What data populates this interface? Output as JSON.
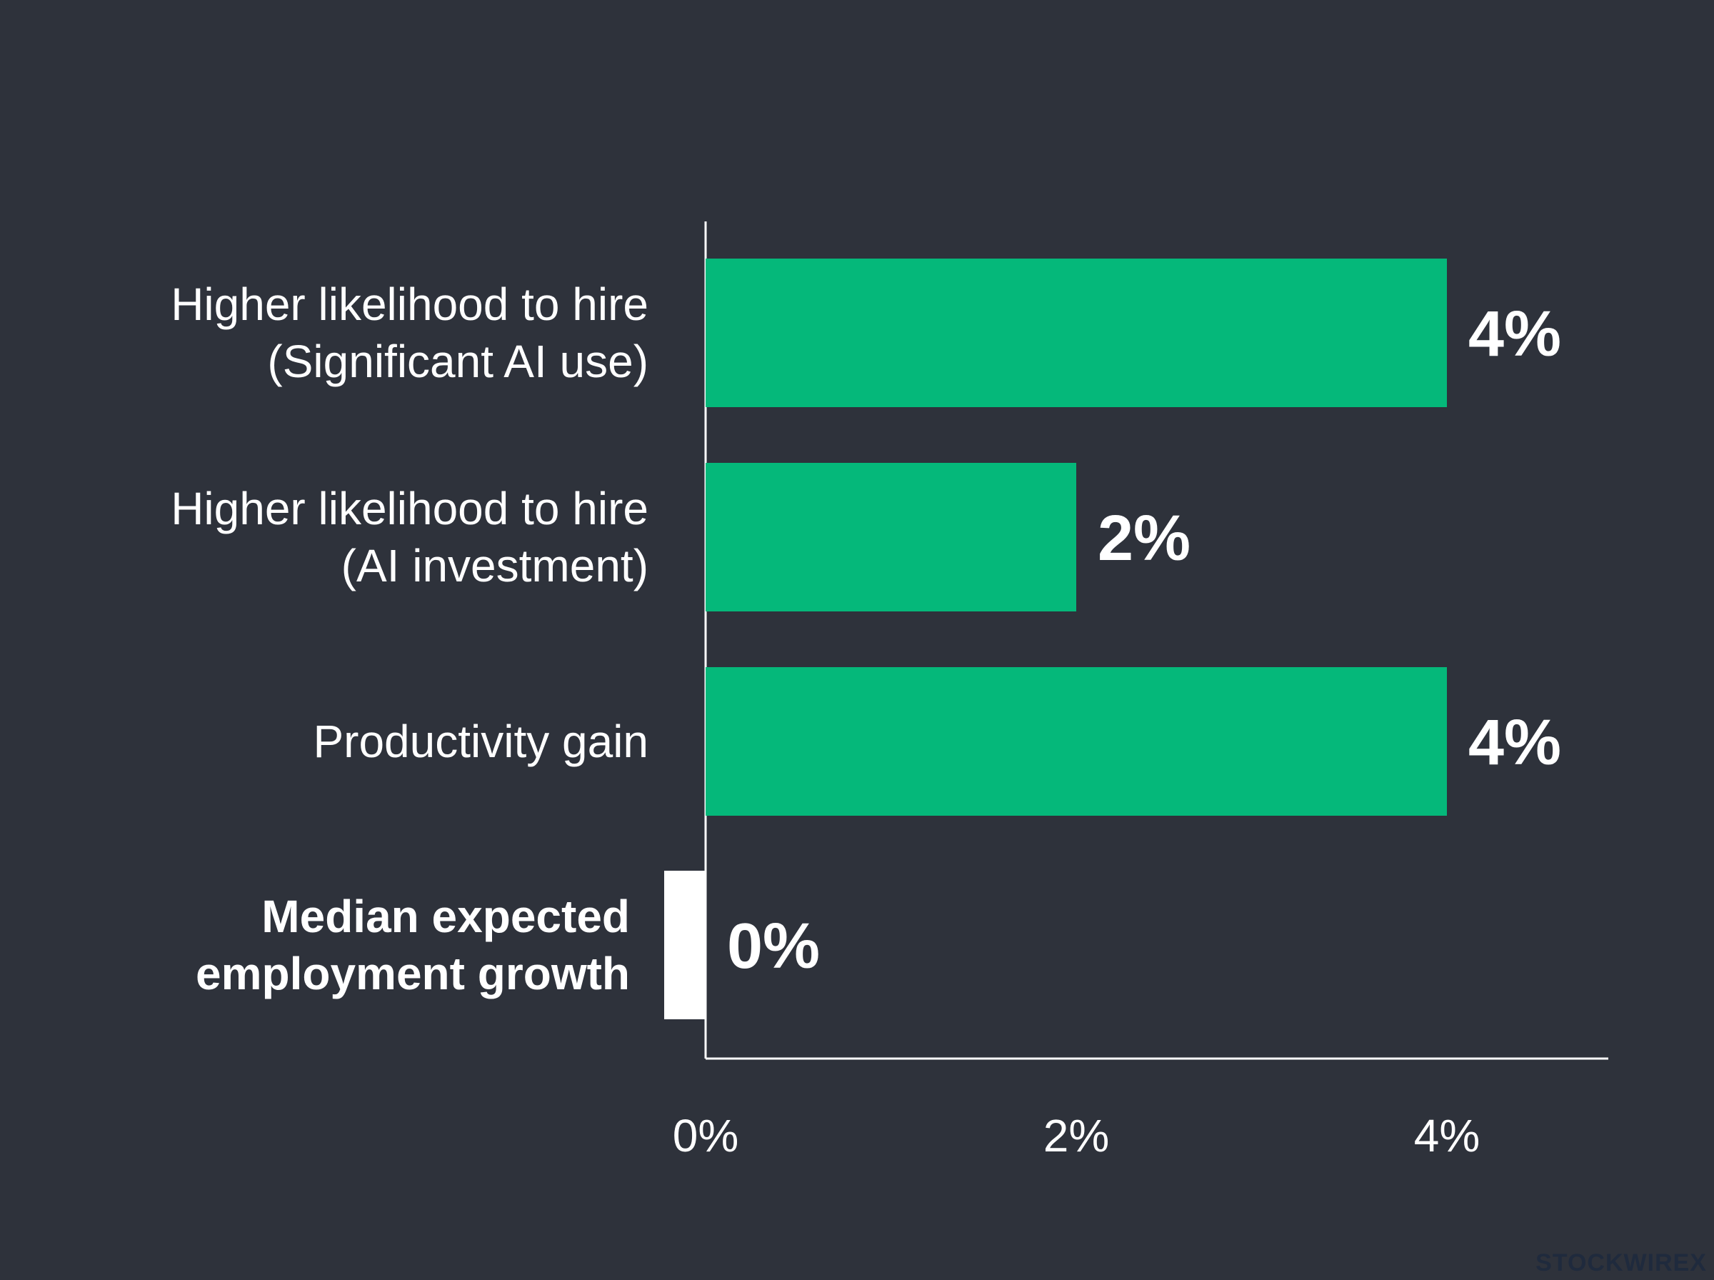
{
  "chart_data": {
    "type": "bar",
    "orientation": "horizontal",
    "categories": [
      [
        "Higher likelihood to hire",
        "(Significant AI use)"
      ],
      [
        "Higher likelihood to hire",
        "(AI investment)"
      ],
      [
        "Productivity gain"
      ],
      [
        "Median expected",
        "employment growth"
      ]
    ],
    "values": [
      4,
      2,
      4,
      0
    ],
    "value_labels": [
      "4%",
      "2%",
      "4%",
      "0%"
    ],
    "highlight_index": 3,
    "xlim": [
      0,
      4.9
    ],
    "xticks": [
      0,
      2,
      4
    ],
    "xtick_labels": [
      "0%",
      "2%",
      "4%"
    ],
    "grid": false,
    "title": "",
    "xlabel": "",
    "ylabel": "",
    "colors": {
      "background": "#2e323b",
      "bar": "#05b87a",
      "highlight_bar": "#ffffff",
      "axis": "#ffffff",
      "text": "#ffffff"
    }
  },
  "watermark": "STOCKWIREX"
}
